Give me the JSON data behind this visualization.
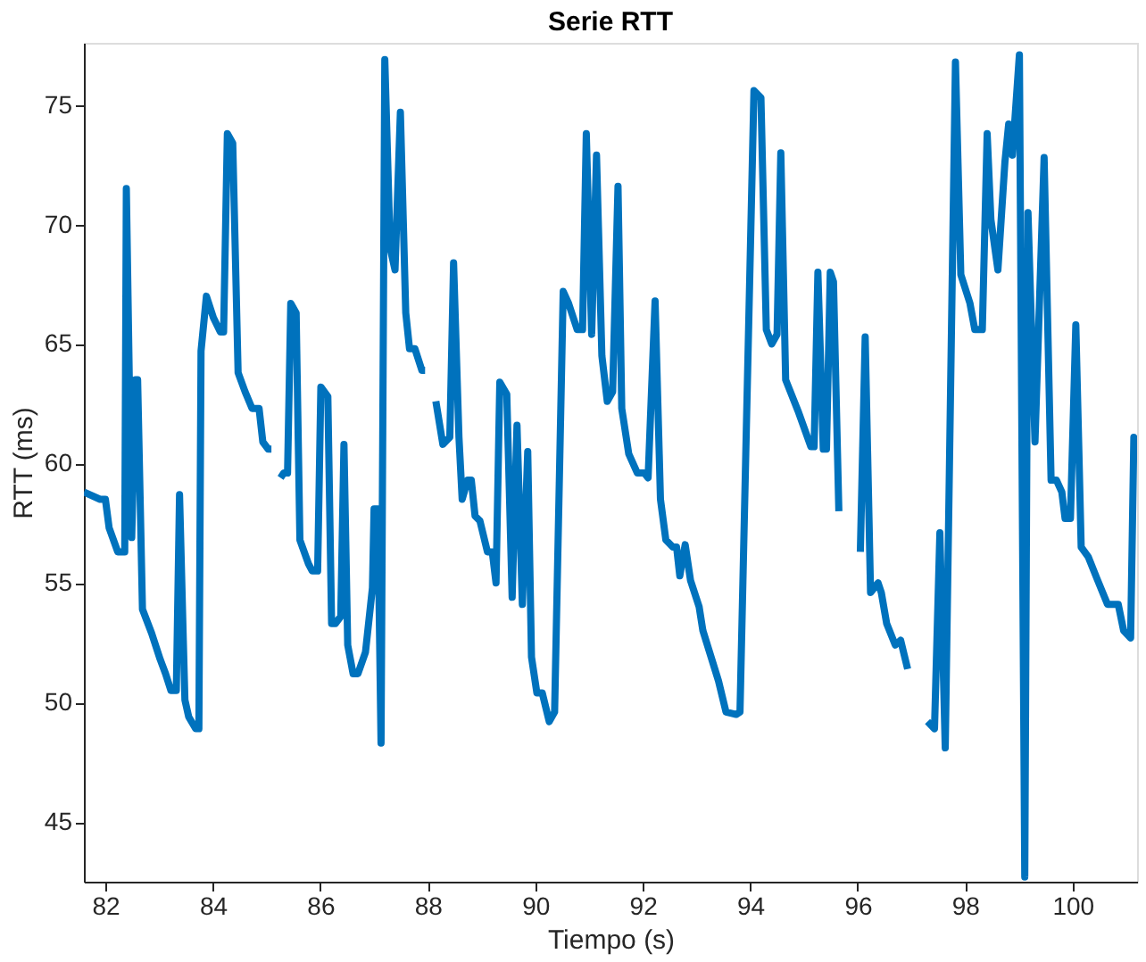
{
  "chart_data": {
    "type": "line",
    "title": "Serie RTT",
    "xlabel": "Tiempo (s)",
    "ylabel": "RTT (ms)",
    "color": "#0072bd",
    "grid": false,
    "xlim": [
      81.6,
      101.2
    ],
    "ylim": [
      42.5,
      77.6
    ],
    "xticks": [
      82,
      84,
      86,
      88,
      90,
      92,
      94,
      96,
      98,
      100
    ],
    "yticks": [
      45,
      50,
      55,
      60,
      65,
      70,
      75
    ],
    "x": [
      81.6,
      81.9,
      82.0,
      82.07,
      82.23,
      82.36,
      82.39,
      82.49,
      82.56,
      82.6,
      82.69,
      82.86,
      83.02,
      83.12,
      83.22,
      83.32,
      83.38,
      83.45,
      83.48,
      83.55,
      83.68,
      83.74,
      83.78,
      83.88,
      84.01,
      84.14,
      84.2,
      84.27,
      84.37,
      84.47,
      84.6,
      84.73,
      84.86,
      84.93,
      85.03,
      85.09,
      85.16,
      85.2,
      85.26,
      85.32,
      85.39,
      85.45,
      85.55,
      85.62,
      85.78,
      85.85,
      85.95,
      86.01,
      86.14,
      86.21,
      86.28,
      86.38,
      86.44,
      86.51,
      86.61,
      86.7,
      86.84,
      86.97,
      87.0,
      87.07,
      87.13,
      87.2,
      87.3,
      87.39,
      87.49,
      87.59,
      87.66,
      87.76,
      87.89,
      87.95,
      88.02,
      88.08,
      88.15,
      88.28,
      88.41,
      88.48,
      88.58,
      88.64,
      88.74,
      88.81,
      88.88,
      88.97,
      89.11,
      89.2,
      89.27,
      89.34,
      89.47,
      89.57,
      89.66,
      89.76,
      89.86,
      89.93,
      90.03,
      90.13,
      90.26,
      90.36,
      90.52,
      90.62,
      90.78,
      90.88,
      90.95,
      91.05,
      91.14,
      91.24,
      91.34,
      91.44,
      91.54,
      91.61,
      91.74,
      91.9,
      92.03,
      92.1,
      92.23,
      92.33,
      92.43,
      92.56,
      92.63,
      92.69,
      92.79,
      92.89,
      93.05,
      93.12,
      93.41,
      93.55,
      93.74,
      93.81,
      94.07,
      94.2,
      94.3,
      94.4,
      94.5,
      94.57,
      94.66,
      94.89,
      95.13,
      95.19,
      95.26,
      95.36,
      95.42,
      95.49,
      95.55,
      95.65,
      95.68,
      95.95,
      96.05,
      96.14,
      96.24,
      96.38,
      96.44,
      96.54,
      96.7,
      96.8,
      96.93,
      96.97,
      97.23,
      97.3,
      97.43,
      97.53,
      97.63,
      97.82,
      97.92,
      98.09,
      98.18,
      98.32,
      98.41,
      98.48,
      98.61,
      98.74,
      98.81,
      98.88,
      99.01,
      99.11,
      99.17,
      99.3,
      99.47,
      99.6,
      99.7,
      99.8,
      99.86,
      99.96,
      100.06,
      100.16,
      100.29,
      100.45,
      100.65,
      100.85,
      100.95,
      101.08,
      101.14,
      101.2
    ],
    "values": [
      58.8,
      58.5,
      58.5,
      57.3,
      56.3,
      56.3,
      71.5,
      56.9,
      63.5,
      63.5,
      53.9,
      52.9,
      51.8,
      51.2,
      50.5,
      50.5,
      58.7,
      52.6,
      50.1,
      49.4,
      48.9,
      48.9,
      64.7,
      67.0,
      66.1,
      65.5,
      65.5,
      73.8,
      73.4,
      63.8,
      63.0,
      62.3,
      62.3,
      60.9,
      60.6,
      60.6,
      null,
      null,
      59.4,
      59.6,
      59.6,
      66.7,
      66.3,
      56.8,
      55.8,
      55.5,
      55.5,
      63.2,
      62.8,
      53.3,
      53.3,
      53.6,
      60.8,
      52.4,
      51.2,
      51.2,
      52.1,
      54.8,
      58.1,
      58.1,
      48.3,
      76.9,
      69.0,
      68.1,
      74.7,
      66.3,
      64.8,
      64.8,
      63.9,
      63.9,
      null,
      null,
      62.6,
      60.8,
      61.1,
      68.4,
      61.1,
      58.5,
      59.3,
      59.3,
      57.8,
      57.6,
      56.3,
      56.3,
      55.0,
      63.4,
      62.9,
      54.4,
      61.6,
      54.1,
      60.5,
      51.9,
      50.4,
      50.4,
      49.2,
      49.6,
      67.2,
      66.7,
      65.6,
      65.6,
      73.8,
      65.4,
      72.9,
      64.5,
      62.6,
      63.0,
      71.6,
      62.3,
      60.4,
      59.6,
      59.6,
      59.4,
      66.8,
      58.5,
      56.8,
      56.5,
      56.5,
      55.3,
      56.6,
      55.1,
      54.0,
      53.0,
      50.9,
      49.6,
      49.5,
      49.6,
      75.6,
      75.3,
      65.6,
      65.0,
      65.4,
      73.0,
      63.5,
      62.2,
      60.7,
      60.7,
      68.0,
      60.6,
      60.6,
      68.0,
      67.6,
      58.0,
      null,
      null,
      56.3,
      65.3,
      54.6,
      55.0,
      54.6,
      53.3,
      52.4,
      52.6,
      51.4,
      null,
      null,
      49.2,
      48.9,
      57.1,
      48.1,
      76.8,
      67.9,
      66.7,
      65.6,
      65.6,
      73.8,
      70.2,
      68.1,
      72.6,
      74.2,
      72.9,
      77.1,
      42.7,
      70.5,
      60.9,
      72.8,
      59.3,
      59.3,
      58.8,
      57.7,
      57.7,
      65.8,
      56.5,
      56.1,
      55.2,
      54.1,
      54.1,
      53.0,
      52.7,
      61.1,
      60.8
    ]
  }
}
